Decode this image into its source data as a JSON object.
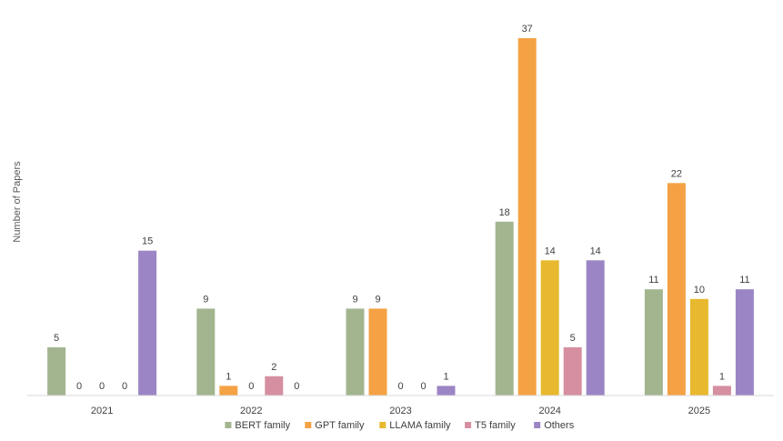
{
  "chart_data": {
    "type": "bar",
    "ylabel": "Number of Papers",
    "xlabel": "",
    "categories": [
      "2021",
      "2022",
      "2023",
      "2024",
      "2025"
    ],
    "series": [
      {
        "name": "BERT family",
        "color": "#a2b58f",
        "values": [
          5,
          9,
          9,
          18,
          11
        ]
      },
      {
        "name": "GPT family",
        "color": "#f4a244",
        "values": [
          0,
          1,
          9,
          37,
          22
        ]
      },
      {
        "name": "LLAMA family",
        "color": "#e8b92e",
        "values": [
          0,
          0,
          0,
          14,
          10
        ]
      },
      {
        "name": "T5 family",
        "color": "#d68fa0",
        "values": [
          0,
          2,
          0,
          5,
          1
        ]
      },
      {
        "name": "Others",
        "color": "#9b85c4",
        "values": [
          15,
          0,
          1,
          14,
          11
        ]
      }
    ],
    "ylim": [
      0,
      37
    ],
    "grid": false,
    "legend": "bottom",
    "data_labels": true
  }
}
